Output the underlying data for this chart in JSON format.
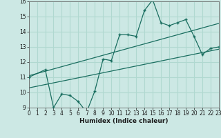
{
  "xlabel": "Humidex (Indice chaleur)",
  "x_min": 0,
  "x_max": 23,
  "y_min": 9,
  "y_max": 16,
  "bg_color": "#cce8e4",
  "line_color": "#1a6e60",
  "grid_color": "#b0d8d0",
  "line1_x": [
    0,
    2,
    3,
    4,
    5,
    6,
    7,
    8,
    9,
    10,
    11,
    12,
    13,
    14,
    15,
    16,
    17,
    18,
    19,
    20,
    21,
    22,
    23
  ],
  "line1_y": [
    11.0,
    11.5,
    9.0,
    9.9,
    9.8,
    9.4,
    8.7,
    10.1,
    12.2,
    12.1,
    13.8,
    13.8,
    13.7,
    15.4,
    16.1,
    14.6,
    14.4,
    14.6,
    14.8,
    13.7,
    12.5,
    12.9,
    13.0
  ],
  "line2_x": [
    0,
    23
  ],
  "line2_y": [
    11.1,
    14.55
  ],
  "line3_x": [
    0,
    23
  ],
  "line3_y": [
    10.3,
    12.85
  ]
}
